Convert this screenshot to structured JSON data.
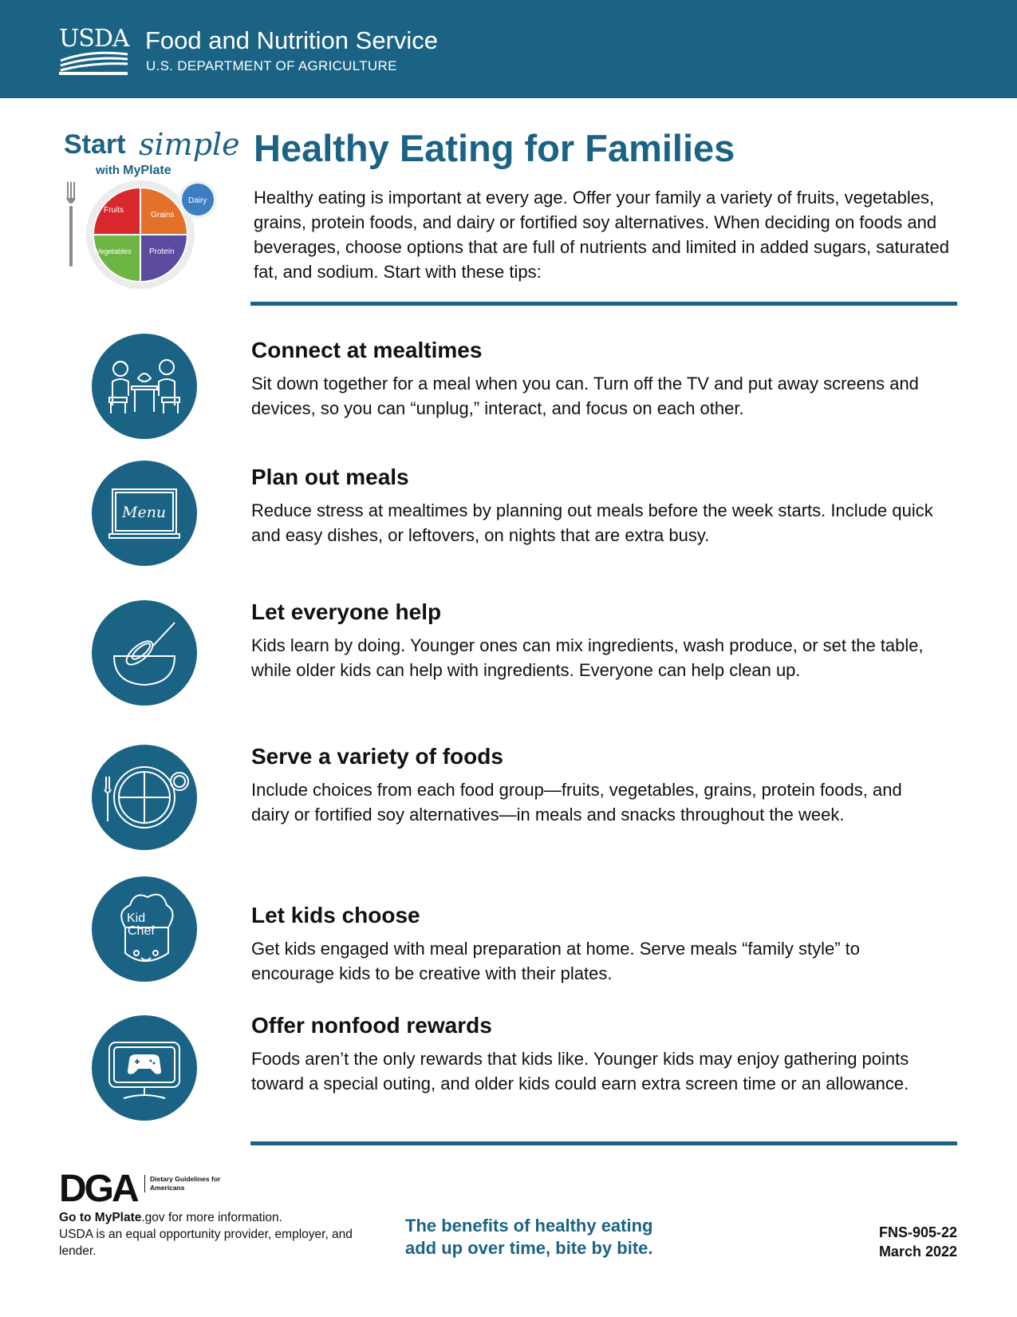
{
  "header": {
    "agency_logo": "USDA",
    "agency_name": "Food and Nutrition Service",
    "department": "U.S. DEPARTMENT OF AGRICULTURE",
    "background_color": "#1b6384"
  },
  "myplate_logo": {
    "start": "Start",
    "simple": "simple",
    "with": "with",
    "brand": "MyPlate",
    "segments": [
      {
        "label": "Fruits",
        "color": "#d9272e"
      },
      {
        "label": "Grains",
        "color": "#e3712b"
      },
      {
        "label": "Vegetables",
        "color": "#6fb544"
      },
      {
        "label": "Protein",
        "color": "#5b4a9e"
      },
      {
        "label": "Dairy",
        "color": "#3d7ec2"
      }
    ]
  },
  "page_title": "Healthy Eating for Families",
  "intro": "Healthy eating is important at every age. Offer your family a variety of fruits, vegetables, grains, protein foods, and dairy or fortified soy alternatives. When deciding on foods and beverages, choose options that are full of nutrients and limited in added sugars, saturated fat, and sodium. Start with these tips:",
  "tips": [
    {
      "title": "Connect at mealtimes",
      "body": "Sit down together for a meal when you can. Turn off the TV and put away screens and devices, so you can “unplug,” interact, and focus on each other.",
      "icon": "family-dining-icon"
    },
    {
      "title": "Plan out meals",
      "body": "Reduce stress at mealtimes by planning out meals before the week starts. Include quick and easy dishes, or leftovers, on nights that are extra busy.",
      "icon": "menu-board-icon",
      "icon_text": "Menu"
    },
    {
      "title": "Let everyone help",
      "body": "Kids learn by doing. Younger ones can mix ingredients, wash produce, or set the table, while older kids can help with ingredients. Everyone can help clean up.",
      "icon": "whisk-bowl-icon"
    },
    {
      "title": "Serve a variety of foods",
      "body": "Include choices from each food group—fruits, vegetables, grains, protein foods, and dairy or fortified soy alternatives—in meals and snacks throughout the week.",
      "icon": "plate-fork-icon"
    },
    {
      "title": "Let kids choose",
      "body": "Get kids engaged with meal preparation at home. Serve meals “family style” to encourage kids to be creative with their plates.",
      "icon": "kid-chef-icon",
      "icon_text_1": "Kid",
      "icon_text_2": "Chef"
    },
    {
      "title": "Offer nonfood rewards",
      "body": "Foods aren’t the only rewards that kids like. Younger kids may enjoy gathering points toward a special outing, and older kids could earn extra screen time or an allowance.",
      "icon": "game-controller-icon"
    }
  ],
  "footer": {
    "dga_logo": "DGA",
    "dga_text": "Dietary Guidelines for Americans",
    "goto_prefix": "Go to ",
    "goto_site": "MyPlate",
    "goto_suffix": ".gov for more information.",
    "equal_opportunity": "USDA is an equal opportunity provider, employer, and lender.",
    "tagline_1": "The benefits of healthy eating",
    "tagline_2": "add up over time, bite by bite.",
    "doc_number": "FNS-905-22",
    "date": "March 2022"
  }
}
